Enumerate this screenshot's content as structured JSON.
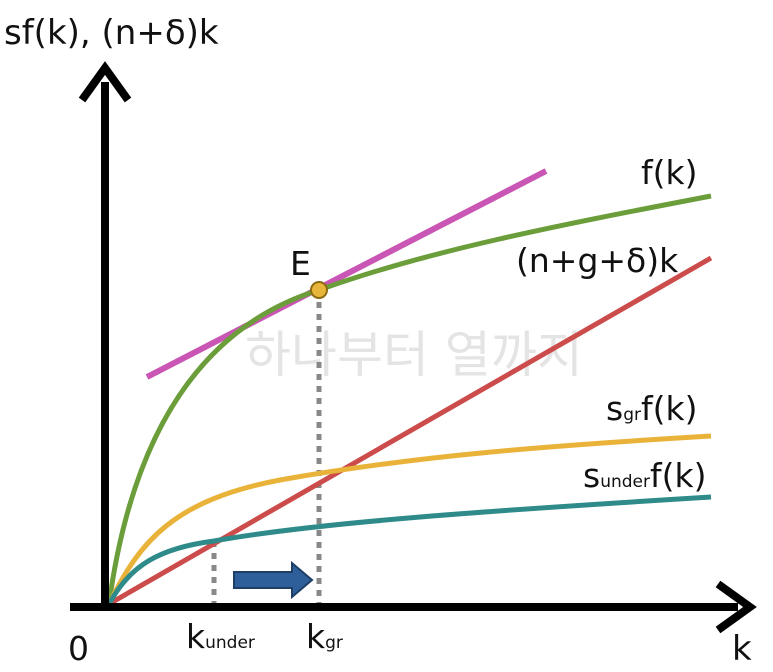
{
  "axes": {
    "y_label": "sf(k), (n+δ)k",
    "x_label": "k",
    "origin_label": "0"
  },
  "curves": {
    "f": {
      "label": "f(k)",
      "color": "#6b9e3a"
    },
    "depreciation": {
      "label": "(n+g+δ)k",
      "color": "#cc4b4b"
    },
    "s_gr": {
      "prefix": "s",
      "sub": "gr",
      "suffix": "f(k)",
      "color": "#e9b33a"
    },
    "s_under": {
      "prefix": "s",
      "sub": "under",
      "suffix": "f(k)",
      "color": "#2f8a8a"
    },
    "tangent": {
      "color": "#c955b4"
    }
  },
  "points": {
    "E": {
      "label": "E",
      "color": "#e6b53a"
    }
  },
  "ticks": {
    "k_under": {
      "base": "k",
      "sub": "under"
    },
    "k_gr": {
      "base": "k",
      "sub": "gr"
    }
  },
  "arrow": {
    "color": "#2f5f9a"
  },
  "watermark": "하나부터 열까지"
}
